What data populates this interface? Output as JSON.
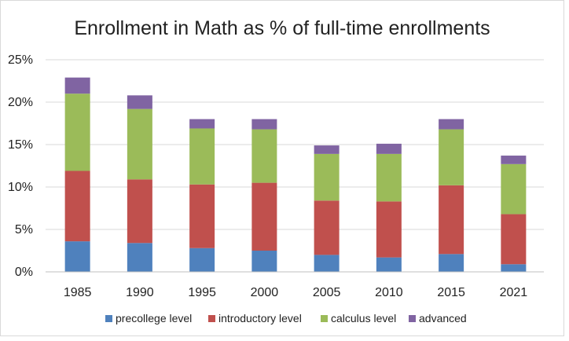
{
  "chart_data": {
    "type": "bar",
    "stacked": true,
    "title": "Enrollment in Math as % of full-time enrollments",
    "xlabel": "",
    "ylabel": "",
    "categories": [
      "1985",
      "1990",
      "1995",
      "2000",
      "2005",
      "2010",
      "2015",
      "2021"
    ],
    "yticks": [
      "0%",
      "5%",
      "10%",
      "15%",
      "20%",
      "25%"
    ],
    "ylim": [
      0,
      25
    ],
    "grid": true,
    "legend_position": "bottom",
    "series": [
      {
        "name": "precollege level",
        "color": "#4f81bd",
        "values": [
          3.6,
          3.4,
          2.8,
          2.5,
          2.0,
          1.7,
          2.1,
          0.9
        ]
      },
      {
        "name": "introductory level",
        "color": "#c0504d",
        "values": [
          8.3,
          7.5,
          7.5,
          8.0,
          6.4,
          6.6,
          8.1,
          5.9
        ]
      },
      {
        "name": "calculus level",
        "color": "#9bbb59",
        "values": [
          9.1,
          8.3,
          6.6,
          6.3,
          5.5,
          5.6,
          6.6,
          5.9
        ]
      },
      {
        "name": "advanced",
        "color": "#8064a2",
        "values": [
          1.9,
          1.6,
          1.1,
          1.2,
          1.0,
          1.2,
          1.2,
          1.0
        ]
      }
    ]
  }
}
